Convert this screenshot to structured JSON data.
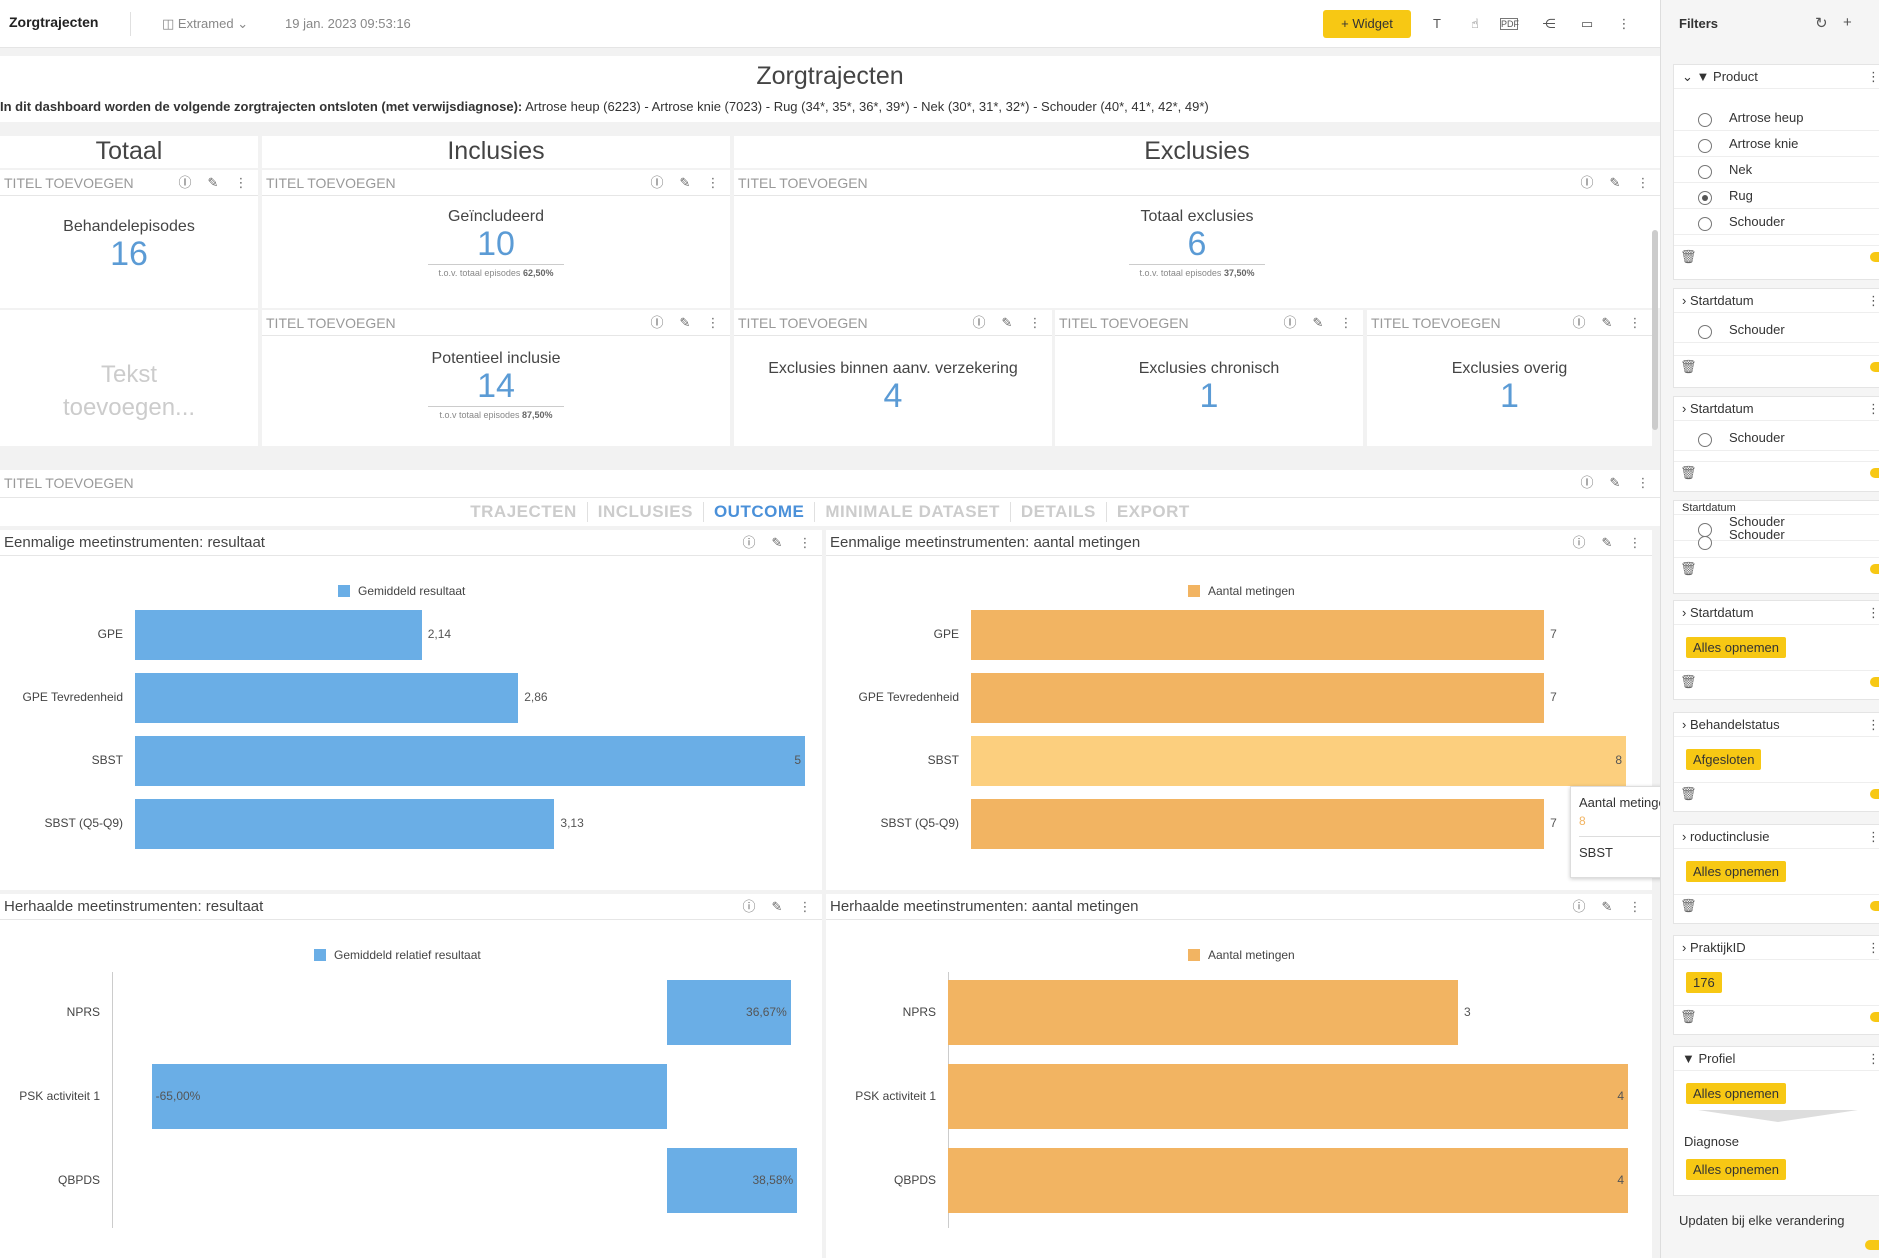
{
  "topbar": {
    "title": "Zorgtrajecten",
    "datasource": "Extramed",
    "datetime": "19 jan. 2023 09:53:16",
    "widget_label": "Widget"
  },
  "dashboard": {
    "title": "Zorgtrajecten",
    "intro_bold": "In dit dashboard worden de volgende zorgtrajecten ontsloten (met verwijsdiagnose):",
    "intro_rest": " Artrose heup (6223) - Artrose knie (7023) - Rug (34*, 35*, 36*, 39*) - Nek (30*, 31*, 32*) - Schouder (40*, 41*, 42*, 49*)"
  },
  "sections": {
    "totaal": "Totaal",
    "inclusies": "Inclusies",
    "exclusies": "Exclusies"
  },
  "widget_header": "TITEL TOEVOEGEN",
  "kpis": {
    "behandelepisodes": {
      "label": "Behandelepisodes",
      "value": "16"
    },
    "geincludeerd": {
      "label": "Geïncludeerd",
      "value": "10",
      "sub": "t.o.v. totaal episodes",
      "pct": "62,50%"
    },
    "totaal_exclusies": {
      "label": "Totaal exclusies",
      "value": "6",
      "sub": "t.o.v. totaal episodes",
      "pct": "37,50%"
    },
    "potentieel": {
      "label": "Potentieel inclusie",
      "value": "14",
      "sub": "t.o.v totaal episodes",
      "pct": "87,50%"
    },
    "excl_verzekering": {
      "label": "Exclusies binnen aanv. verzekering",
      "value": "4"
    },
    "excl_chronisch": {
      "label": "Exclusies chronisch",
      "value": "1"
    },
    "excl_overig": {
      "label": "Exclusies overig",
      "value": "1"
    }
  },
  "text_placeholder": "Tekst toevoegen...",
  "tabs": [
    "TRAJECTEN",
    "INCLUSIES",
    "OUTCOME",
    "MINIMALE DATASET",
    "DETAILS",
    "EXPORT"
  ],
  "active_tab": "OUTCOME",
  "colors": {
    "blue": "#6aaee6",
    "orange": "#f2b462",
    "orange_hover": "#fccf7e",
    "yellow": "#f7c814"
  },
  "tooltip": {
    "series": "Aantal metingen",
    "value": "8",
    "category": "SBST"
  },
  "chart_data": [
    {
      "type": "bar",
      "title": "Eenmalige meetinstrumenten: resultaat",
      "series": [
        {
          "name": "Gemiddeld resultaat",
          "values": [
            2.14,
            2.86,
            5,
            3.13
          ]
        }
      ],
      "categories": [
        "GPE",
        "GPE Tevredenheid",
        "SBST",
        "SBST (Q5-Q9)"
      ],
      "labels": [
        "2,14",
        "2,86",
        "5",
        "3,13"
      ],
      "xlim": [
        0,
        5
      ]
    },
    {
      "type": "bar",
      "title": "Eenmalige meetinstrumenten: aantal metingen",
      "series": [
        {
          "name": "Aantal metingen",
          "values": [
            7,
            7,
            8,
            7
          ]
        }
      ],
      "categories": [
        "GPE",
        "GPE Tevredenheid",
        "SBST",
        "SBST (Q5-Q9)"
      ],
      "labels": [
        "7",
        "7",
        "8",
        "7"
      ],
      "xlim": [
        0,
        8
      ]
    },
    {
      "type": "bar",
      "title": "Herhaalde meetinstrumenten: resultaat",
      "series": [
        {
          "name": "Gemiddeld relatief resultaat",
          "values": [
            36.67,
            -65.0,
            38.58
          ]
        }
      ],
      "categories": [
        "NPRS",
        "PSK activiteit 1",
        "QBPDS"
      ],
      "labels": [
        "36,67%",
        "-65,00%",
        "38,58%"
      ],
      "xlim": [
        -70,
        40
      ]
    },
    {
      "type": "bar",
      "title": "Herhaalde meetinstrumenten: aantal metingen",
      "series": [
        {
          "name": "Aantal metingen",
          "values": [
            3,
            4,
            4
          ]
        }
      ],
      "categories": [
        "NPRS",
        "PSK activiteit 1",
        "QBPDS"
      ],
      "labels": [
        "3",
        "4",
        "4"
      ],
      "xlim": [
        0,
        4
      ]
    }
  ],
  "filters": {
    "title": "Filters",
    "product": {
      "label": "Product",
      "options": [
        "Artrose heup",
        "Artrose knie",
        "Nek",
        "Rug",
        "Schouder"
      ],
      "selected": "Rug"
    },
    "startdatum1": {
      "label": "Startdatum",
      "option": "Schouder"
    },
    "startdatum2": {
      "label": "Startdatum",
      "option": "Schouder"
    },
    "startdatum3": {
      "label": "Startdatum",
      "option1": "Schouder",
      "option2": "Schouder"
    },
    "startdatum4": {
      "label": "Startdatum",
      "chip": "Alles opnemen"
    },
    "behandelstatus": {
      "label": "Behandelstatus",
      "chip": "Afgesloten"
    },
    "productinclusie": {
      "label": "roductinclusie",
      "chip": "Alles opnemen"
    },
    "praktijkid": {
      "label": "PraktijkID",
      "chip": "176"
    },
    "profiel": {
      "label": "Profiel",
      "chip": "Alles opnemen"
    },
    "diagnose": {
      "label": "Diagnose",
      "chip": "Alles opnemen"
    },
    "update": "Updaten bij elke verandering"
  }
}
